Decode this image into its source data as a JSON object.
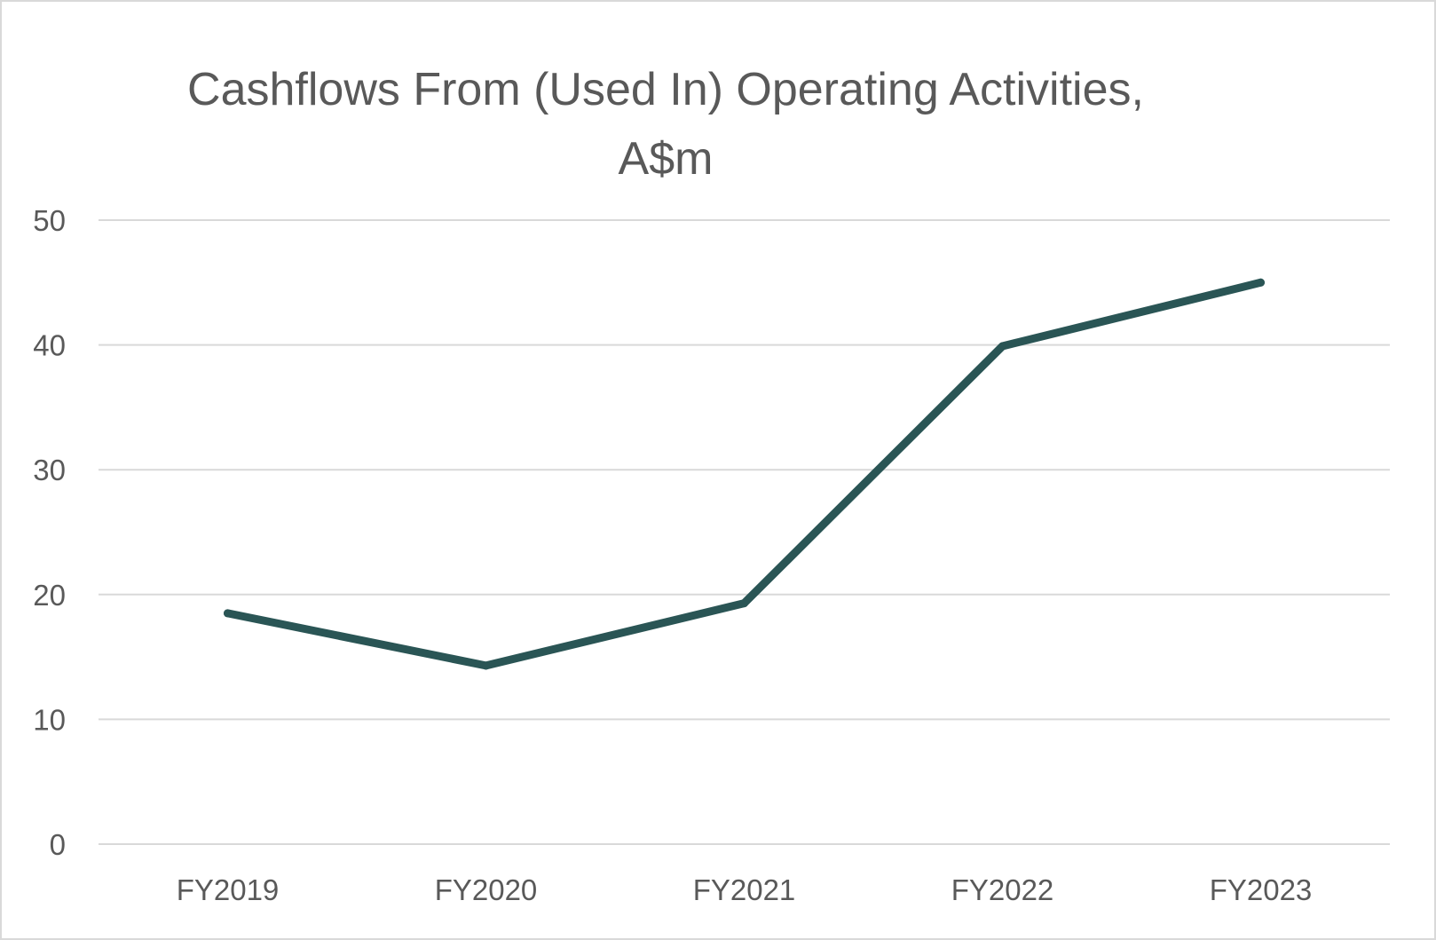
{
  "chart_data": {
    "type": "line",
    "title_line1": "Cashflows From (Used In) Operating Activities,",
    "title_line2": "A$m",
    "xlabel": "",
    "ylabel": "",
    "categories": [
      "FY2019",
      "FY2020",
      "FY2021",
      "FY2022",
      "FY2023"
    ],
    "series": [
      {
        "values": [
          18.5,
          14.3,
          19.3,
          39.9,
          45.0
        ]
      }
    ],
    "ylim": [
      0,
      50
    ],
    "yticks": [
      0,
      10,
      20,
      30,
      40,
      50
    ],
    "grid": true,
    "legend": "none",
    "colors": {
      "line": "#2a5555",
      "grid": "#d9d9d9",
      "text": "#595959"
    }
  }
}
